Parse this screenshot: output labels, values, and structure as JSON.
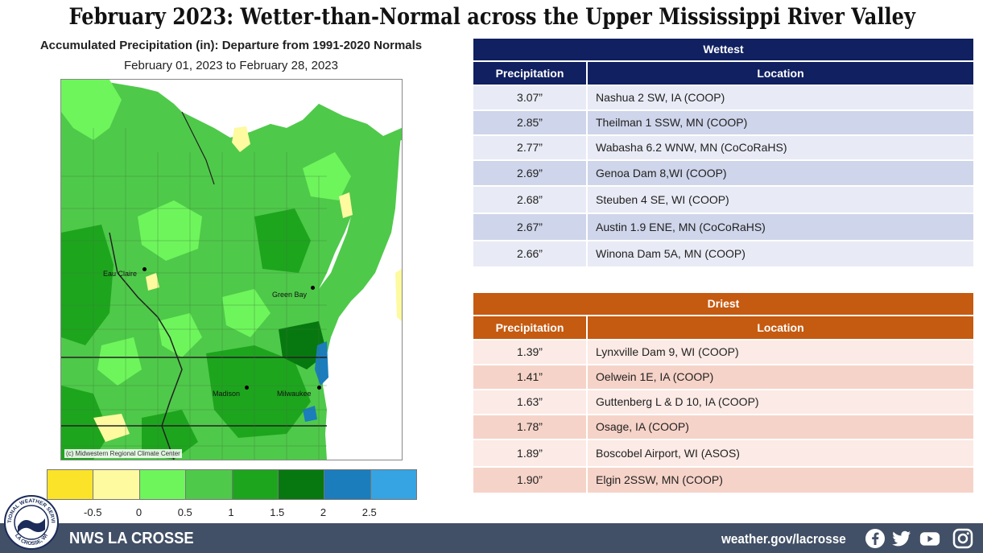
{
  "title": "February 2023:  Wetter-than-Normal across the Upper Mississippi River Valley",
  "map": {
    "title": "Accumulated Precipitation (in): Departure from 1991-2020 Normals",
    "subtitle": "February 01, 2023 to February 28, 2023",
    "credit": "(c) Midwestern Regional Climate Center",
    "cities": [
      {
        "name": "Eau Claire"
      },
      {
        "name": "Green Bay"
      },
      {
        "name": "Madison"
      },
      {
        "name": "Milwaukee"
      }
    ]
  },
  "legend": {
    "colors": [
      "#fbe32a",
      "#fdfaa0",
      "#6ef55c",
      "#4fc94a",
      "#1ea51e",
      "#07780f",
      "#1b7dbc",
      "#36a3e2"
    ],
    "labels": [
      "-0.5",
      "0",
      "0.5",
      "1",
      "1.5",
      "2",
      "2.5"
    ]
  },
  "wettest": {
    "title": "Wettest",
    "header_color": "#102060",
    "row_colors": [
      "#e8eaf5",
      "#cfd5ea"
    ],
    "col_precip": "Precipitation",
    "col_location": "Location",
    "rows": [
      {
        "precip": "3.07”",
        "location": "Nashua 2 SW, IA (COOP)"
      },
      {
        "precip": "2.85”",
        "location": "Theilman 1 SSW, MN (COOP)"
      },
      {
        "precip": "2.77”",
        "location": "Wabasha 6.2 WNW, MN (CoCoRaHS)"
      },
      {
        "precip": "2.69”",
        "location": "Genoa Dam 8,WI (COOP)"
      },
      {
        "precip": "2.68”",
        "location": "Steuben 4 SE, WI (COOP)"
      },
      {
        "precip": "2.67”",
        "location": "Austin 1.9 ENE, MN (CoCoRaHS)"
      },
      {
        "precip": "2.66”",
        "location": "Winona Dam 5A, MN (COOP)"
      }
    ]
  },
  "driest": {
    "title": "Driest",
    "header_color": "#c55a11",
    "row_colors": [
      "#fbeae5",
      "#f6d3c8"
    ],
    "col_precip": "Precipitation",
    "col_location": "Location",
    "rows": [
      {
        "precip": "1.39”",
        "location": "Lynxville Dam 9, WI (COOP)"
      },
      {
        "precip": "1.41”",
        "location": "Oelwein 1E, IA (COOP)"
      },
      {
        "precip": "1.63”",
        "location": "Guttenberg L & D 10, IA (COOP)"
      },
      {
        "precip": "1.78”",
        "location": "Osage, IA (COOP)"
      },
      {
        "precip": "1.89”",
        "location": "Boscobel Airport, WI (ASOS)"
      },
      {
        "precip": "1.90”",
        "location": "Elgin 2SSW, MN (COOP)"
      }
    ]
  },
  "footer": {
    "name": "NWS LA CROSSE",
    "url": "weather.gov/lacrosse",
    "bg_color": "#415066",
    "logo_text_top": "NATIONAL WEATHER SERVICE",
    "logo_text_bottom": "LA CROSSE, WI",
    "icons": [
      "facebook-icon",
      "twitter-icon",
      "youtube-icon",
      "instagram-icon"
    ]
  }
}
